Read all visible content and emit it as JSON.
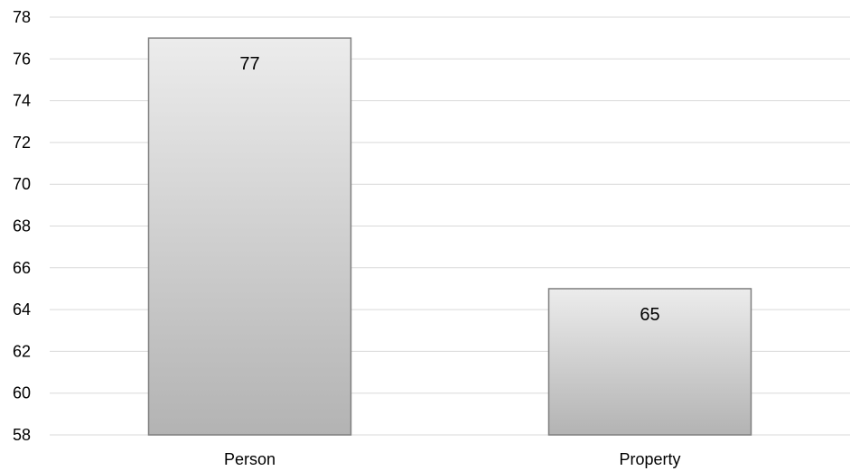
{
  "chart_data": {
    "type": "bar",
    "categories": [
      "Person",
      "Property"
    ],
    "values": [
      77,
      65
    ],
    "data_labels": [
      "77",
      "65"
    ],
    "title": "",
    "xlabel": "",
    "ylabel": "",
    "ylim": [
      58,
      78
    ],
    "y_ticks": [
      58,
      60,
      62,
      64,
      66,
      68,
      70,
      72,
      74,
      76,
      78
    ],
    "grid": true,
    "legend": "none",
    "colors": {
      "bar_gradient_top": "#ececec",
      "bar_gradient_bottom": "#b3b3b3",
      "bar_border": "#7f7f7f",
      "grid": "#d9d9d9",
      "text": "#000000"
    }
  }
}
